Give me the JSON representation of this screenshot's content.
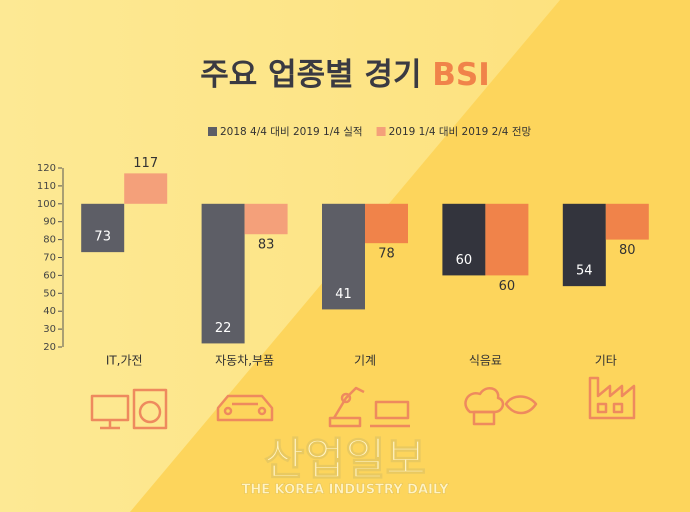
{
  "chart_data": {
    "type": "bar",
    "title": "주요 업종별 경기",
    "title_highlight": "BSI",
    "categories": [
      "IT,가전",
      "자동차,부품",
      "기계",
      "식음료",
      "기타"
    ],
    "series": [
      {
        "name": "2018 4/4 대비 2019 1/4 실적",
        "colors": [
          "#5d5e66",
          "#5d5e66",
          "#5d5e66",
          "#33343d",
          "#33343d"
        ],
        "values": [
          73,
          22,
          41,
          60,
          54
        ]
      },
      {
        "name": "2019 1/4 대비 2019 2/4 전망",
        "colors": [
          "#f4a07a",
          "#f4a07a",
          "#f0834a",
          "#f0834a",
          "#f0834a"
        ],
        "values": [
          117,
          83,
          78,
          60,
          80
        ]
      }
    ],
    "baseline": 100,
    "ylim": [
      20,
      120
    ],
    "yticks": [
      20,
      30,
      40,
      50,
      60,
      70,
      80,
      90,
      100,
      110,
      120
    ],
    "watermark": "산업일보",
    "watermark_sub": "THE KOREA INDUSTRY DAILY"
  }
}
